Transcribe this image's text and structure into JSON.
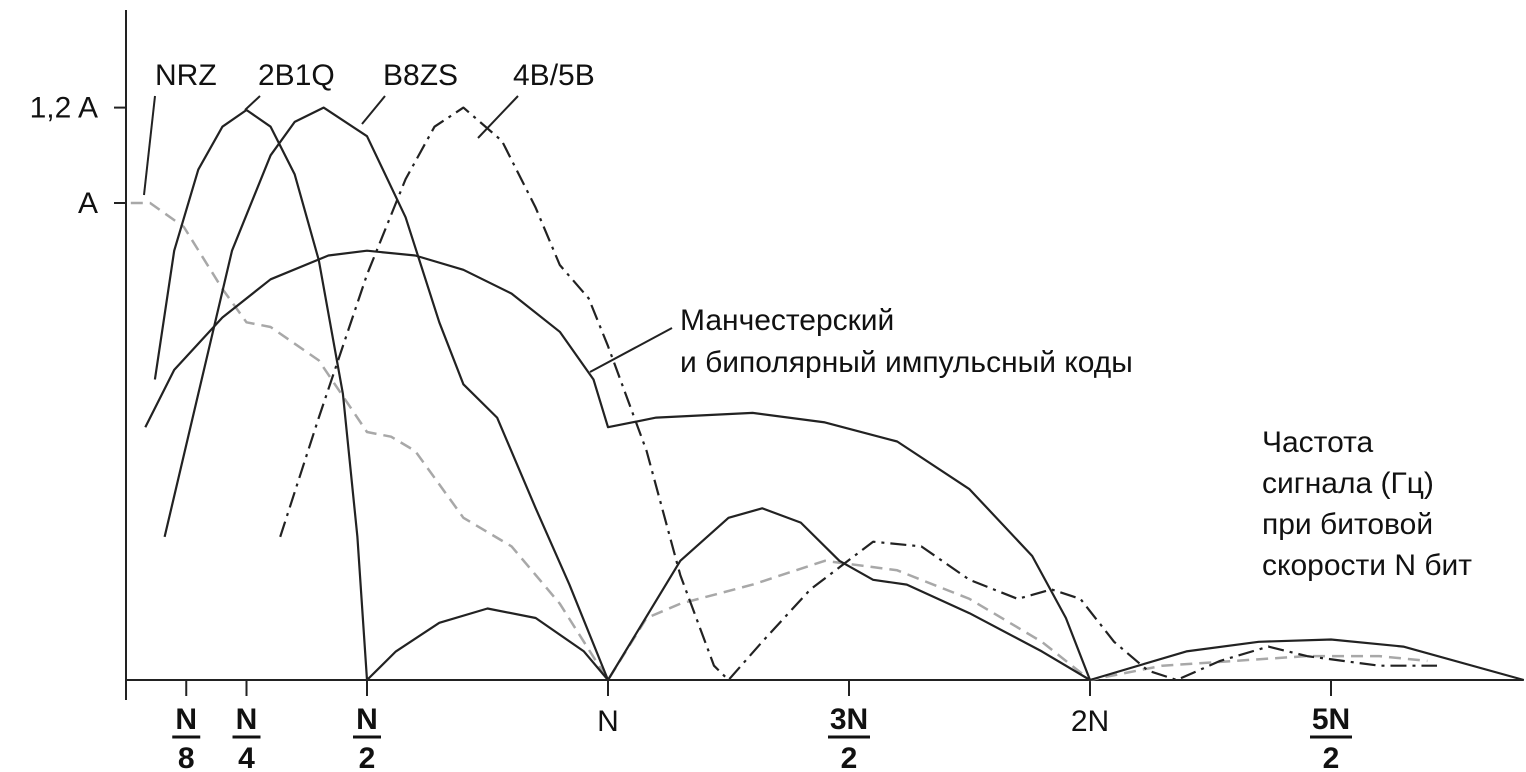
{
  "chart_data": {
    "type": "line",
    "title": "",
    "xlabel": [
      "Частота",
      "сигнала (Гц)",
      "при битовой",
      "скорости N бит"
    ],
    "ylabel": "",
    "xlim": [
      0,
      2.9
    ],
    "ylim": [
      0,
      1.2
    ],
    "x_ticks": [
      {
        "value": 0.125,
        "num": "N",
        "den": "8"
      },
      {
        "value": 0.25,
        "num": "N",
        "den": "4"
      },
      {
        "value": 0.5,
        "num": "N",
        "den": "2"
      },
      {
        "value": 1.0,
        "num": "N",
        "den": ""
      },
      {
        "value": 1.5,
        "num": "3N",
        "den": "2"
      },
      {
        "value": 2.0,
        "num": "2N",
        "den": ""
      },
      {
        "value": 2.5,
        "num": "5N",
        "den": "2"
      }
    ],
    "y_ticks": [
      {
        "value": 1.2,
        "label": "1,2 A"
      },
      {
        "value": 1.0,
        "label": "A"
      }
    ],
    "series": [
      {
        "name": "NRZ",
        "style": "dashed-gray",
        "color": "#a8a8a8",
        "points": [
          [
            0.01,
            1.0
          ],
          [
            0.05,
            1.0
          ],
          [
            0.12,
            0.95
          ],
          [
            0.2,
            0.82
          ],
          [
            0.25,
            0.75
          ],
          [
            0.3,
            0.74
          ],
          [
            0.4,
            0.67
          ],
          [
            0.5,
            0.52
          ],
          [
            0.55,
            0.51
          ],
          [
            0.6,
            0.48
          ],
          [
            0.7,
            0.34
          ],
          [
            0.8,
            0.28
          ],
          [
            0.9,
            0.16
          ],
          [
            1.0,
            0.0
          ],
          [
            1.08,
            0.13
          ],
          [
            1.15,
            0.16
          ],
          [
            1.3,
            0.2
          ],
          [
            1.45,
            0.25
          ],
          [
            1.6,
            0.23
          ],
          [
            1.75,
            0.17
          ],
          [
            1.9,
            0.08
          ],
          [
            2.0,
            0.0
          ],
          [
            2.15,
            0.03
          ],
          [
            2.3,
            0.04
          ],
          [
            2.45,
            0.05
          ],
          [
            2.6,
            0.05
          ],
          [
            2.7,
            0.04
          ]
        ]
      },
      {
        "name": "2B1Q",
        "style": "solid",
        "color": "#222222",
        "points": [
          [
            0.06,
            0.63
          ],
          [
            0.1,
            0.9
          ],
          [
            0.15,
            1.07
          ],
          [
            0.2,
            1.16
          ],
          [
            0.25,
            1.195
          ],
          [
            0.3,
            1.16
          ],
          [
            0.35,
            1.06
          ],
          [
            0.4,
            0.88
          ],
          [
            0.45,
            0.6
          ],
          [
            0.48,
            0.3
          ],
          [
            0.5,
            0.0
          ],
          [
            0.56,
            0.06
          ],
          [
            0.65,
            0.12
          ],
          [
            0.75,
            0.15
          ],
          [
            0.85,
            0.13
          ],
          [
            0.95,
            0.06
          ],
          [
            1.0,
            0.0
          ]
        ]
      },
      {
        "name": "B8ZS",
        "style": "solid",
        "color": "#222222",
        "points": [
          [
            0.08,
            0.3
          ],
          [
            0.15,
            0.6
          ],
          [
            0.22,
            0.9
          ],
          [
            0.3,
            1.1
          ],
          [
            0.35,
            1.17
          ],
          [
            0.41,
            1.2
          ],
          [
            0.5,
            1.14
          ],
          [
            0.58,
            0.97
          ],
          [
            0.65,
            0.75
          ],
          [
            0.7,
            0.62
          ],
          [
            0.77,
            0.55
          ],
          [
            0.85,
            0.36
          ],
          [
            0.92,
            0.2
          ],
          [
            1.0,
            0.0
          ],
          [
            1.15,
            0.25
          ],
          [
            1.25,
            0.34
          ],
          [
            1.32,
            0.36
          ],
          [
            1.4,
            0.33
          ],
          [
            1.48,
            0.25
          ],
          [
            1.55,
            0.21
          ],
          [
            1.62,
            0.2
          ],
          [
            1.75,
            0.14
          ],
          [
            1.9,
            0.06
          ],
          [
            2.0,
            0.0
          ],
          [
            2.2,
            0.06
          ],
          [
            2.35,
            0.08
          ],
          [
            2.5,
            0.085
          ],
          [
            2.65,
            0.07
          ],
          [
            2.9,
            0.0
          ]
        ]
      },
      {
        "name": "4B/5B",
        "style": "dash-dot",
        "color": "#222222",
        "points": [
          [
            0.32,
            0.3
          ],
          [
            0.4,
            0.55
          ],
          [
            0.5,
            0.85
          ],
          [
            0.58,
            1.05
          ],
          [
            0.64,
            1.16
          ],
          [
            0.7,
            1.2
          ],
          [
            0.78,
            1.13
          ],
          [
            0.85,
            0.99
          ],
          [
            0.9,
            0.87
          ],
          [
            0.96,
            0.8
          ],
          [
            1.0,
            0.7
          ],
          [
            1.08,
            0.48
          ],
          [
            1.15,
            0.22
          ],
          [
            1.22,
            0.03
          ],
          [
            1.25,
            0.0
          ],
          [
            1.32,
            0.08
          ],
          [
            1.42,
            0.19
          ],
          [
            1.55,
            0.29
          ],
          [
            1.65,
            0.28
          ],
          [
            1.75,
            0.21
          ],
          [
            1.85,
            0.17
          ],
          [
            1.92,
            0.19
          ],
          [
            1.98,
            0.17
          ],
          [
            2.05,
            0.08
          ],
          [
            2.12,
            0.02
          ],
          [
            2.18,
            0.0
          ],
          [
            2.27,
            0.04
          ],
          [
            2.37,
            0.07
          ],
          [
            2.45,
            0.05
          ],
          [
            2.6,
            0.03
          ],
          [
            2.72,
            0.03
          ]
        ]
      },
      {
        "name": "Манчестерский и биполярный импульсный коды",
        "style": "solid",
        "color": "#222222",
        "points": [
          [
            0.04,
            0.53
          ],
          [
            0.1,
            0.65
          ],
          [
            0.2,
            0.76
          ],
          [
            0.3,
            0.84
          ],
          [
            0.42,
            0.89
          ],
          [
            0.5,
            0.9
          ],
          [
            0.6,
            0.89
          ],
          [
            0.7,
            0.86
          ],
          [
            0.8,
            0.81
          ],
          [
            0.9,
            0.73
          ],
          [
            0.97,
            0.63
          ],
          [
            1.0,
            0.53
          ],
          [
            1.1,
            0.55
          ],
          [
            1.3,
            0.56
          ],
          [
            1.45,
            0.54
          ],
          [
            1.6,
            0.5
          ],
          [
            1.75,
            0.4
          ],
          [
            1.88,
            0.26
          ],
          [
            1.95,
            0.13
          ],
          [
            2.0,
            0.0
          ]
        ]
      }
    ],
    "curve_labels": [
      {
        "series": "NRZ",
        "text": "NRZ"
      },
      {
        "series": "2B1Q",
        "text": "2B1Q"
      },
      {
        "series": "B8ZS",
        "text": "B8ZS"
      },
      {
        "series": "4B/5B",
        "text": "4B/5B"
      },
      {
        "series": "Манчестерский и биполярный импульсный коды",
        "text": [
          "Манчестерский",
          "и биполярный импульсный коды"
        ]
      }
    ]
  }
}
